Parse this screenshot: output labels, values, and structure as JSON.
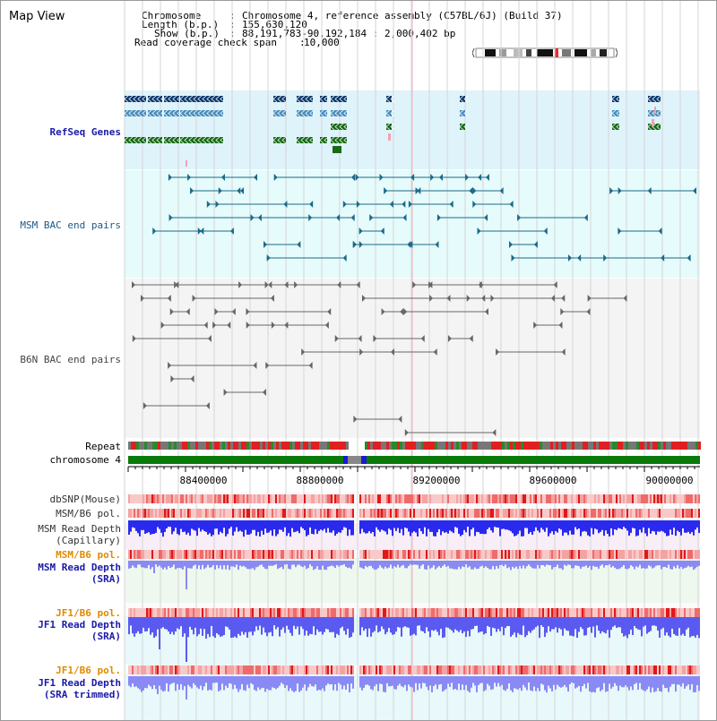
{
  "app_title": "Map View",
  "header": {
    "chromosome_label": "Chromosome",
    "chromosome_value": "Chromosome 4, reference assembly (C57BL/6J) (Build 37)",
    "length_label": "Length (b.p.)",
    "length_value": "155,630,120",
    "show_label": "Show (b.p.)",
    "show_value": "88,191,783-90,192,184 : 2,000,402 bp",
    "coverage_label": "Read coverage check span",
    "coverage_value": "10,000"
  },
  "tracks": {
    "refseq": "RefSeq Genes",
    "msm_bac": "MSM BAC end pairs",
    "b6n_bac": "B6N BAC end pairs",
    "repeat": "Repeat",
    "chromosome": "chromosome 4",
    "dbsnp": "dbSNP(Mouse)",
    "msm_b6_pol": "MSM/B6 pol.",
    "msm_depth_cap_1": "MSM Read Depth",
    "msm_depth_cap_2": "(Capillary)",
    "msm_b6_pol_2": "MSM/B6 pol.",
    "msm_depth_sra_1": "MSM Read Depth",
    "msm_depth_sra_2": "(SRA)",
    "jf1_pol": "JF1/B6 pol.",
    "jf1_depth_1": "JF1 Read Depth",
    "jf1_depth_2": "(SRA)",
    "jf1_pol_2": "JF1/B6 pol.",
    "jf1_trim_1": "JF1 Read Depth",
    "jf1_trim_2": "(SRA trimmed)"
  },
  "axis": {
    "ticks": [
      "88400000",
      "88800000",
      "89200000",
      "89600000",
      "90000000"
    ]
  },
  "colors": {
    "refseq_bg": "#dff3fb",
    "msm_bg": "#e6fbfb",
    "b6n_bg": "#f4f4f4",
    "label_blue": "#1a1aa8",
    "label_orange": "#e08a00",
    "label_gray": "#333333",
    "gene_navy": "#0d3a6e",
    "gene_mid": "#4a8fbf",
    "gene_green": "#176b17",
    "bac_teal": "#1a6a8a",
    "bac_gray": "#666666",
    "chrom_green": "#0a7a0a",
    "depth_blue": "#3333ee",
    "depth_light": "#8a8af5"
  }
}
